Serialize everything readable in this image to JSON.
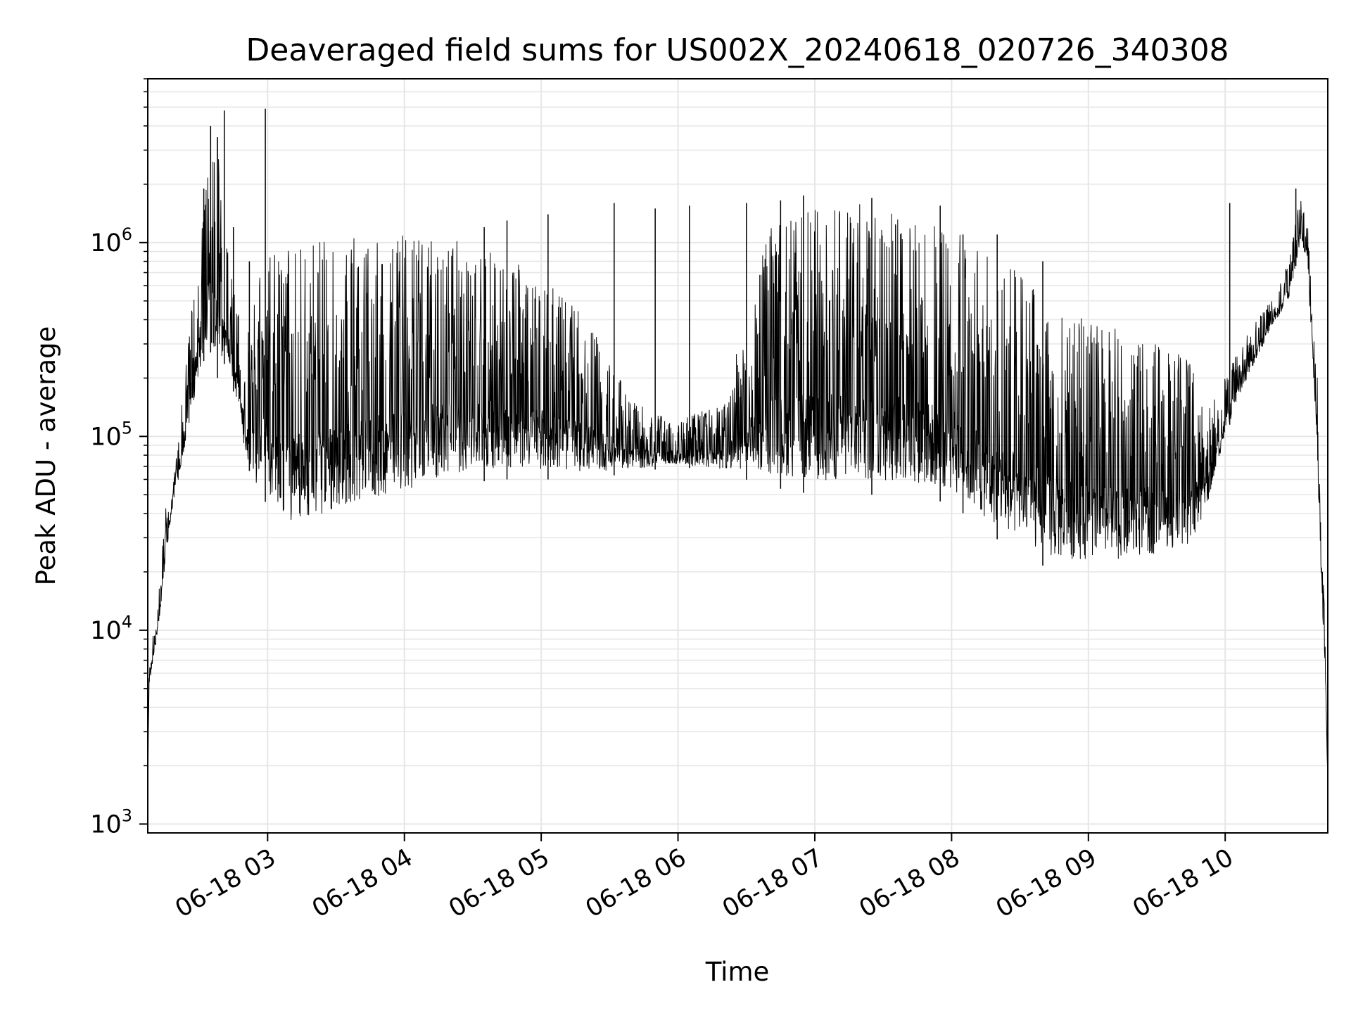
{
  "chart_data": {
    "type": "line",
    "title": "Deaveraged field sums for US002X_20240618_020726_340308",
    "xlabel": "Time",
    "ylabel": "Peak ADU - average",
    "x_range": [
      "2024-06-18 02:07:26",
      "2024-06-18 10:45:00"
    ],
    "x_tick_labels": [
      "06-18 03",
      "06-18 04",
      "06-18 05",
      "06-18 06",
      "06-18 07",
      "06-18 08",
      "06-18 09",
      "06-18 10"
    ],
    "x_tick_times": [
      "2024-06-18 03:00",
      "2024-06-18 04:00",
      "2024-06-18 05:00",
      "2024-06-18 06:00",
      "2024-06-18 07:00",
      "2024-06-18 08:00",
      "2024-06-18 09:00",
      "2024-06-18 10:00"
    ],
    "y_scale": "log",
    "ylim": [
      900,
      7000000
    ],
    "y_tick_labels": [
      {
        "base": "10",
        "exp": "3",
        "value": 1000
      },
      {
        "base": "10",
        "exp": "4",
        "value": 10000
      },
      {
        "base": "10",
        "exp": "5",
        "value": 100000
      },
      {
        "base": "10",
        "exp": "6",
        "value": 1000000
      }
    ],
    "grid": true,
    "line_color": "#000000",
    "grid_color": "#e6e6e6",
    "series": [
      {
        "envelope_low": [
          [
            "2024-06-18 02:07:26",
            1500
          ],
          [
            "2024-06-18 02:08",
            5000
          ],
          [
            "2024-06-18 02:12",
            10000
          ],
          [
            "2024-06-18 02:15",
            20000
          ],
          [
            "2024-06-18 02:18",
            40000
          ],
          [
            "2024-06-18 02:21",
            60000
          ],
          [
            "2024-06-18 02:25",
            100000
          ],
          [
            "2024-06-18 02:30",
            200000
          ],
          [
            "2024-06-18 02:34",
            300000
          ],
          [
            "2024-06-18 02:38",
            200000
          ],
          [
            "2024-06-18 02:42",
            250000
          ],
          [
            "2024-06-18 02:46",
            150000
          ],
          [
            "2024-06-18 02:50",
            80000
          ],
          [
            "2024-06-18 02:55",
            50000
          ],
          [
            "2024-06-18 03:00",
            45000
          ],
          [
            "2024-06-18 03:10",
            30000
          ],
          [
            "2024-06-18 03:30",
            35000
          ],
          [
            "2024-06-18 04:00",
            45000
          ],
          [
            "2024-06-18 04:20",
            55000
          ],
          [
            "2024-06-18 04:40",
            60000
          ],
          [
            "2024-06-18 05:00",
            60000
          ],
          [
            "2024-06-18 05:20",
            60000
          ],
          [
            "2024-06-18 05:40",
            65000
          ],
          [
            "2024-06-18 06:00",
            70000
          ],
          [
            "2024-06-18 06:20",
            65000
          ],
          [
            "2024-06-18 06:40",
            55000
          ],
          [
            "2024-06-18 07:00",
            50000
          ],
          [
            "2024-06-18 07:20",
            50000
          ],
          [
            "2024-06-18 07:40",
            50000
          ],
          [
            "2024-06-18 08:00",
            45000
          ],
          [
            "2024-06-18 08:15",
            32000
          ],
          [
            "2024-06-18 08:30",
            25000
          ],
          [
            "2024-06-18 08:45",
            20000
          ],
          [
            "2024-06-18 09:00",
            20000
          ],
          [
            "2024-06-18 09:15",
            20000
          ],
          [
            "2024-06-18 09:30",
            22000
          ],
          [
            "2024-06-18 09:45",
            25000
          ],
          [
            "2024-06-18 09:52",
            40000
          ],
          [
            "2024-06-18 10:00",
            100000
          ],
          [
            "2024-06-18 10:10",
            200000
          ],
          [
            "2024-06-18 10:20",
            350000
          ],
          [
            "2024-06-18 10:28",
            500000
          ],
          [
            "2024-06-18 10:33",
            1000000
          ],
          [
            "2024-06-18 10:36",
            800000
          ],
          [
            "2024-06-18 10:40",
            100000
          ],
          [
            "2024-06-18 10:42",
            20000
          ],
          [
            "2024-06-18 10:44",
            5000
          ],
          [
            "2024-06-18 10:45",
            1500
          ]
        ],
        "envelope_high": [
          [
            "2024-06-18 02:07:26",
            1500
          ],
          [
            "2024-06-18 02:08",
            7000
          ],
          [
            "2024-06-18 02:12",
            14000
          ],
          [
            "2024-06-18 02:15",
            40000
          ],
          [
            "2024-06-18 02:18",
            70000
          ],
          [
            "2024-06-18 02:21",
            100000
          ],
          [
            "2024-06-18 02:25",
            300000
          ],
          [
            "2024-06-18 02:30",
            1000000
          ],
          [
            "2024-06-18 02:34",
            3000000
          ],
          [
            "2024-06-18 02:38",
            3500000
          ],
          [
            "2024-06-18 02:42",
            1000000
          ],
          [
            "2024-06-18 02:46",
            500000
          ],
          [
            "2024-06-18 02:50",
            300000
          ],
          [
            "2024-06-18 02:55",
            700000
          ],
          [
            "2024-06-18 03:00",
            900000
          ],
          [
            "2024-06-18 03:10",
            950000
          ],
          [
            "2024-06-18 03:30",
            1050000
          ],
          [
            "2024-06-18 04:00",
            1100000
          ],
          [
            "2024-06-18 04:20",
            1050000
          ],
          [
            "2024-06-18 04:40",
            900000
          ],
          [
            "2024-06-18 05:00",
            700000
          ],
          [
            "2024-06-18 05:20",
            400000
          ],
          [
            "2024-06-18 05:40",
            150000
          ],
          [
            "2024-06-18 06:00",
            120000
          ],
          [
            "2024-06-18 06:20",
            150000
          ],
          [
            "2024-06-18 06:40",
            1200000
          ],
          [
            "2024-06-18 07:00",
            1500000
          ],
          [
            "2024-06-18 07:20",
            1600000
          ],
          [
            "2024-06-18 07:40",
            1400000
          ],
          [
            "2024-06-18 08:00",
            1200000
          ],
          [
            "2024-06-18 08:15",
            900000
          ],
          [
            "2024-06-18 08:30",
            700000
          ],
          [
            "2024-06-18 08:45",
            500000
          ],
          [
            "2024-06-18 09:00",
            400000
          ],
          [
            "2024-06-18 09:15",
            350000
          ],
          [
            "2024-06-18 09:30",
            300000
          ],
          [
            "2024-06-18 09:45",
            250000
          ],
          [
            "2024-06-18 09:52",
            150000
          ],
          [
            "2024-06-18 10:00",
            200000
          ],
          [
            "2024-06-18 10:10",
            350000
          ],
          [
            "2024-06-18 10:20",
            500000
          ],
          [
            "2024-06-18 10:28",
            800000
          ],
          [
            "2024-06-18 10:33",
            1800000
          ],
          [
            "2024-06-18 10:36",
            1300000
          ],
          [
            "2024-06-18 10:40",
            300000
          ],
          [
            "2024-06-18 10:42",
            40000
          ],
          [
            "2024-06-18 10:44",
            9000
          ],
          [
            "2024-06-18 10:45",
            3000
          ]
        ],
        "spikes": [
          [
            "2024-06-18 02:32",
            1900000
          ],
          [
            "2024-06-18 02:35",
            4000000
          ],
          [
            "2024-06-18 02:38",
            3500000
          ],
          [
            "2024-06-18 02:41",
            4800000
          ],
          [
            "2024-06-18 02:45",
            1200000
          ],
          [
            "2024-06-18 02:52",
            800000
          ],
          [
            "2024-06-18 02:59",
            4900000
          ],
          [
            "2024-06-18 04:35",
            1200000
          ],
          [
            "2024-06-18 04:45",
            1300000
          ],
          [
            "2024-06-18 05:03",
            1400000
          ],
          [
            "2024-06-18 05:32",
            1600000
          ],
          [
            "2024-06-18 05:50",
            1500000
          ],
          [
            "2024-06-18 06:05",
            1550000
          ],
          [
            "2024-06-18 06:30",
            1600000
          ],
          [
            "2024-06-18 06:45",
            1650000
          ],
          [
            "2024-06-18 06:55",
            1750000
          ],
          [
            "2024-06-18 07:25",
            1700000
          ],
          [
            "2024-06-18 07:55",
            1550000
          ],
          [
            "2024-06-18 08:05",
            1100000
          ],
          [
            "2024-06-18 08:20",
            1100000
          ],
          [
            "2024-06-18 08:40",
            800000
          ],
          [
            "2024-06-18 10:02",
            1600000
          ],
          [
            "2024-06-18 10:31",
            1900000
          ]
        ]
      }
    ]
  }
}
